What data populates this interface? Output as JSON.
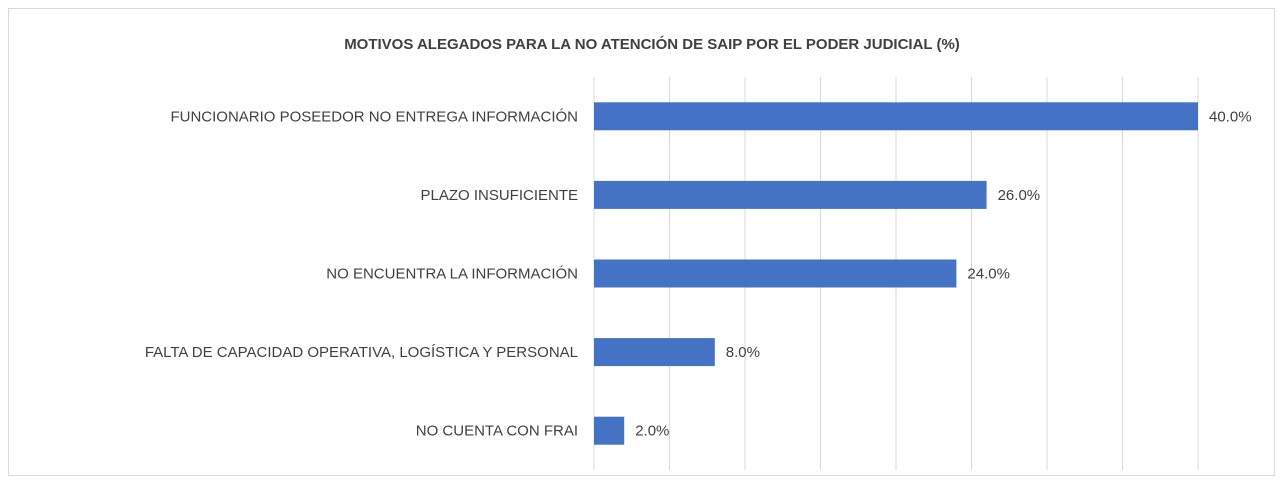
{
  "chart_data": {
    "type": "bar",
    "orientation": "horizontal",
    "title": "MOTIVOS ALEGADOS PARA LA NO ATENCIÓN  DE SAIP POR EL PODER JUDICIAL (%)",
    "categories": [
      "FUNCIONARIO POSEEDOR NO ENTREGA INFORMACIÓN",
      "PLAZO INSUFICIENTE",
      "NO ENCUENTRA LA INFORMACIÓN",
      "FALTA DE CAPACIDAD OPERATIVA, LOGÍSTICA Y PERSONAL",
      "NO CUENTA CON FRAI"
    ],
    "values": [
      40,
      26,
      24,
      8,
      2
    ],
    "value_labels": [
      "40.0%",
      "26.0%",
      "24.0%",
      "8.0%",
      "2.0%"
    ],
    "color": "#4472c4",
    "xlim": [
      0,
      40
    ],
    "xticks": [
      0,
      5,
      10,
      15,
      20,
      25,
      30,
      35,
      40
    ],
    "grid": true
  }
}
